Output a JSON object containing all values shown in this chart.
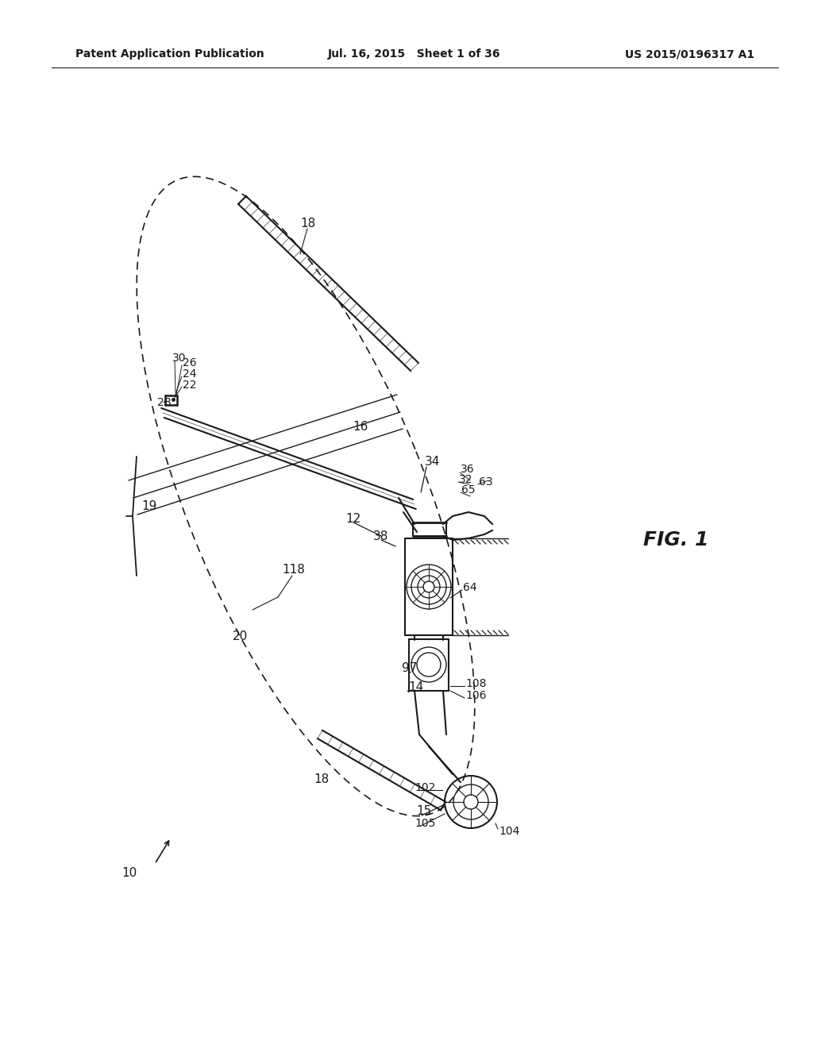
{
  "bg_color": "#ffffff",
  "line_color": "#1a1a1a",
  "header_left": "Patent Application Publication",
  "header_center": "Jul. 16, 2015   Sheet 1 of 36",
  "header_right": "US 2015/0196317 A1"
}
